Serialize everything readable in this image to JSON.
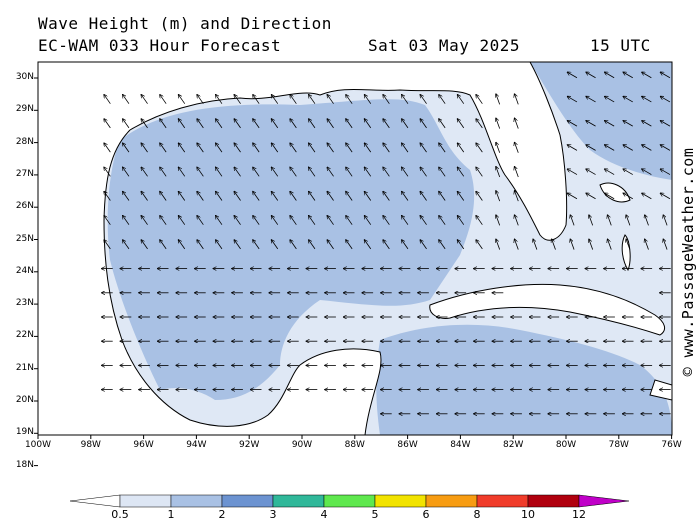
{
  "header": {
    "line1": "Wave Height (m) and Direction",
    "line2": "EC-WAM 033 Hour Forecast",
    "date": "Sat 03 May 2025",
    "time": "15 UTC"
  },
  "watermark": "© www.PassageWeather.com",
  "axes": {
    "lat_labels": [
      "30N",
      "29N",
      "28N",
      "27N",
      "26N",
      "25N",
      "24N",
      "23N",
      "22N",
      "21N",
      "20N",
      "19N",
      "18N"
    ],
    "lon_labels": [
      "100W",
      "98W",
      "96W",
      "94W",
      "92W",
      "90W",
      "88W",
      "86W",
      "84W",
      "82W",
      "80W",
      "78W",
      "76W"
    ]
  },
  "colorbar": {
    "labels": [
      "0.5",
      "1",
      "2",
      "3",
      "4",
      "5",
      "6",
      "8",
      "10",
      "12"
    ],
    "colors": [
      "#dde6f4",
      "#a9c1e4",
      "#6c93d1",
      "#30b89a",
      "#5fe84e",
      "#f2e300",
      "#f79c12",
      "#f03c2a",
      "#b0000e",
      "#c000c8"
    ],
    "low_color": "#ffffff",
    "high_color": "#c000c8"
  },
  "map": {
    "ocean_light": "#dfe8f5",
    "ocean_mid": "#a9c1e4",
    "land": "#ffffff",
    "coast": "#000000"
  }
}
